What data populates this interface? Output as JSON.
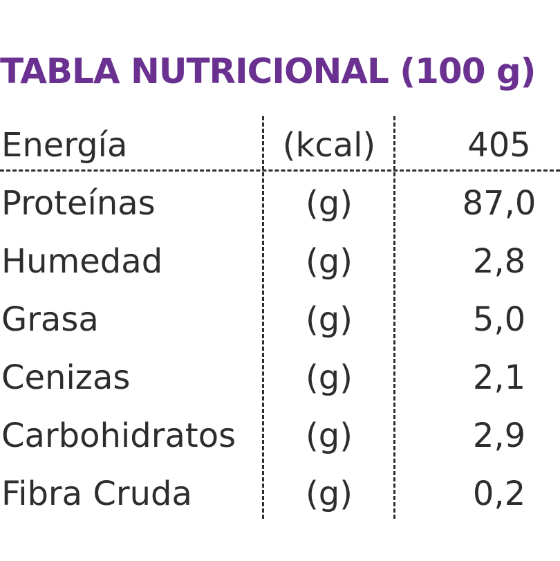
{
  "title": "TABLA NUTRICIONAL (100 g)",
  "header_row": {
    "name": "Energía",
    "unit": "(kcal)",
    "value": "405"
  },
  "rows": [
    {
      "name": "Proteínas",
      "unit": "(g)",
      "value": "87,0"
    },
    {
      "name": "Humedad",
      "unit": "(g)",
      "value": "2,8"
    },
    {
      "name": "Grasa",
      "unit": "(g)",
      "value": "5,0"
    },
    {
      "name": "Cenizas",
      "unit": "(g)",
      "value": "2,1"
    },
    {
      "name": "Carbohidratos",
      "unit": "(g)",
      "value": "2,9"
    },
    {
      "name": "Fibra Cruda",
      "unit": "(g)",
      "value": "0,2"
    }
  ],
  "colors": {
    "title": "#6a3191",
    "text": "#2d2d2d"
  }
}
